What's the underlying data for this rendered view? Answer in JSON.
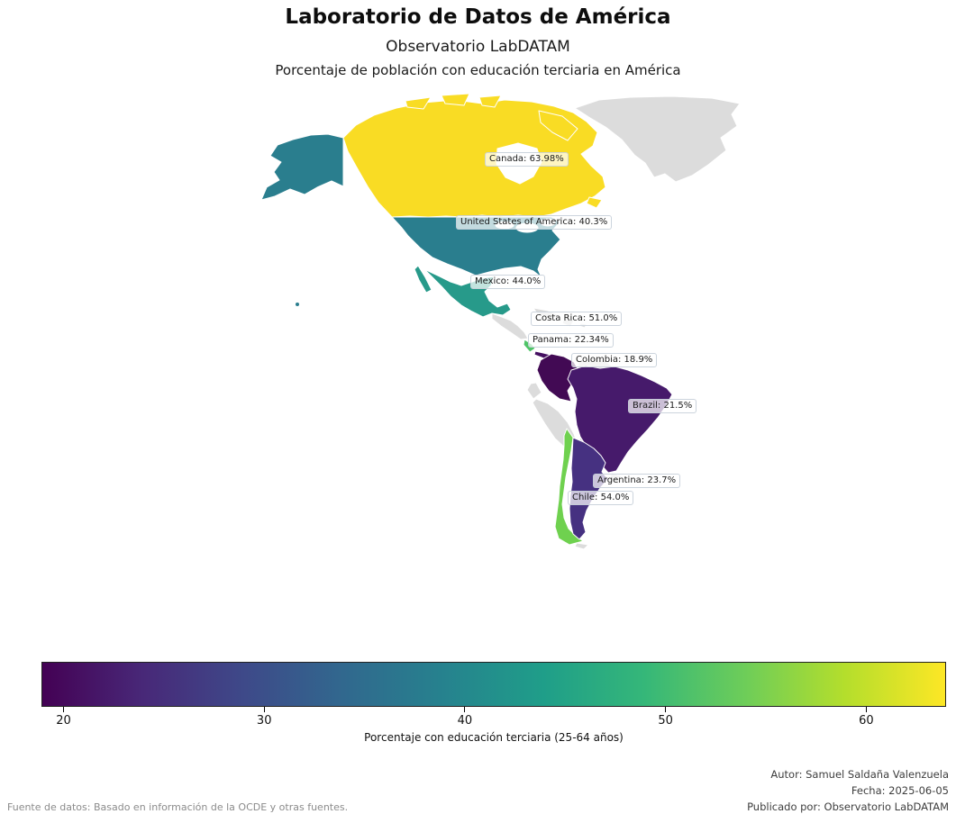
{
  "header": {
    "title": "Laboratorio de Datos de América",
    "subtitle": "Observatorio LabDATAM",
    "axes_title": "Porcentaje de población con educación terciaria en América"
  },
  "chart_data": {
    "type": "heatmap",
    "subtype": "choropleth-map-of-americas",
    "title": "Laboratorio de Datos de América",
    "subtitle": "Observatorio LabDATAM",
    "axes_title": "Porcentaje de población con educación terciaria en América",
    "categories": [
      "Canada",
      "United States of America",
      "Mexico",
      "Costa Rica",
      "Panama",
      "Colombia",
      "Brazil",
      "Argentina",
      "Chile"
    ],
    "values": [
      63.98,
      40.3,
      44.0,
      51.0,
      22.34,
      18.9,
      21.5,
      23.7,
      54.0
    ],
    "unit": "%",
    "legend_position": "bottom",
    "colorbar": {
      "label": "Porcentaje con educación terciaria (25-64 años)",
      "ticks": [
        20,
        30,
        40,
        50,
        60
      ],
      "vmin": 18.9,
      "vmax": 63.98,
      "colormap": "viridis",
      "stops": [
        "#440154",
        "#482878",
        "#3e4989",
        "#31688e",
        "#26828e",
        "#1f9e89",
        "#35b779",
        "#6dcd59",
        "#b4de2c",
        "#fde725"
      ]
    },
    "no_data_color": "#dcdcdc"
  },
  "map": {
    "border_color": "#ffffff",
    "no_data_color": "#dcdcdc",
    "countries": [
      {
        "name": "Canada",
        "value": 63.98,
        "label": "Canada: 63.98%",
        "color": "#f9dc24"
      },
      {
        "name": "United States of America",
        "value": 40.3,
        "label": "United States of America: 40.3%",
        "color": "#2a7e8e"
      },
      {
        "name": "Mexico",
        "value": 44.0,
        "label": "Mexico: 44.0%",
        "color": "#279a8a"
      },
      {
        "name": "Costa Rica",
        "value": 51.0,
        "label": "Costa Rica: 51.0%",
        "color": "#4fc467"
      },
      {
        "name": "Panama",
        "value": 22.34,
        "label": "Panama: 22.34%",
        "color": "#451061"
      },
      {
        "name": "Colombia",
        "value": 18.9,
        "label": "Colombia: 18.9%",
        "color": "#420a54"
      },
      {
        "name": "Brazil",
        "value": 21.5,
        "label": "Brazil: 21.5%",
        "color": "#461a6b"
      },
      {
        "name": "Argentina",
        "value": 23.7,
        "label": "Argentina: 23.7%",
        "color": "#463181"
      },
      {
        "name": "Chile",
        "value": 54.0,
        "label": "Chile: 54.0%",
        "color": "#6fd14f"
      }
    ],
    "no_data_regions": [
      "Greenland",
      "Central America (Guatemala-Honduras-Nicaragua)",
      "Cuba",
      "Hispaniola",
      "Puerto Rico",
      "Venezuela",
      "Guianas",
      "Ecuador",
      "Peru",
      "Bolivia",
      "Paraguay",
      "Uruguay",
      "Tierra del Fuego"
    ]
  },
  "footer": {
    "source": "Fuente de datos: Basado en información de la OCDE y otras fuentes.",
    "author": "Autor: Samuel Saldaña Valenzuela",
    "date": "Fecha: 2025-06-05",
    "publisher": "Publicado por: Observatorio LabDATAM"
  }
}
